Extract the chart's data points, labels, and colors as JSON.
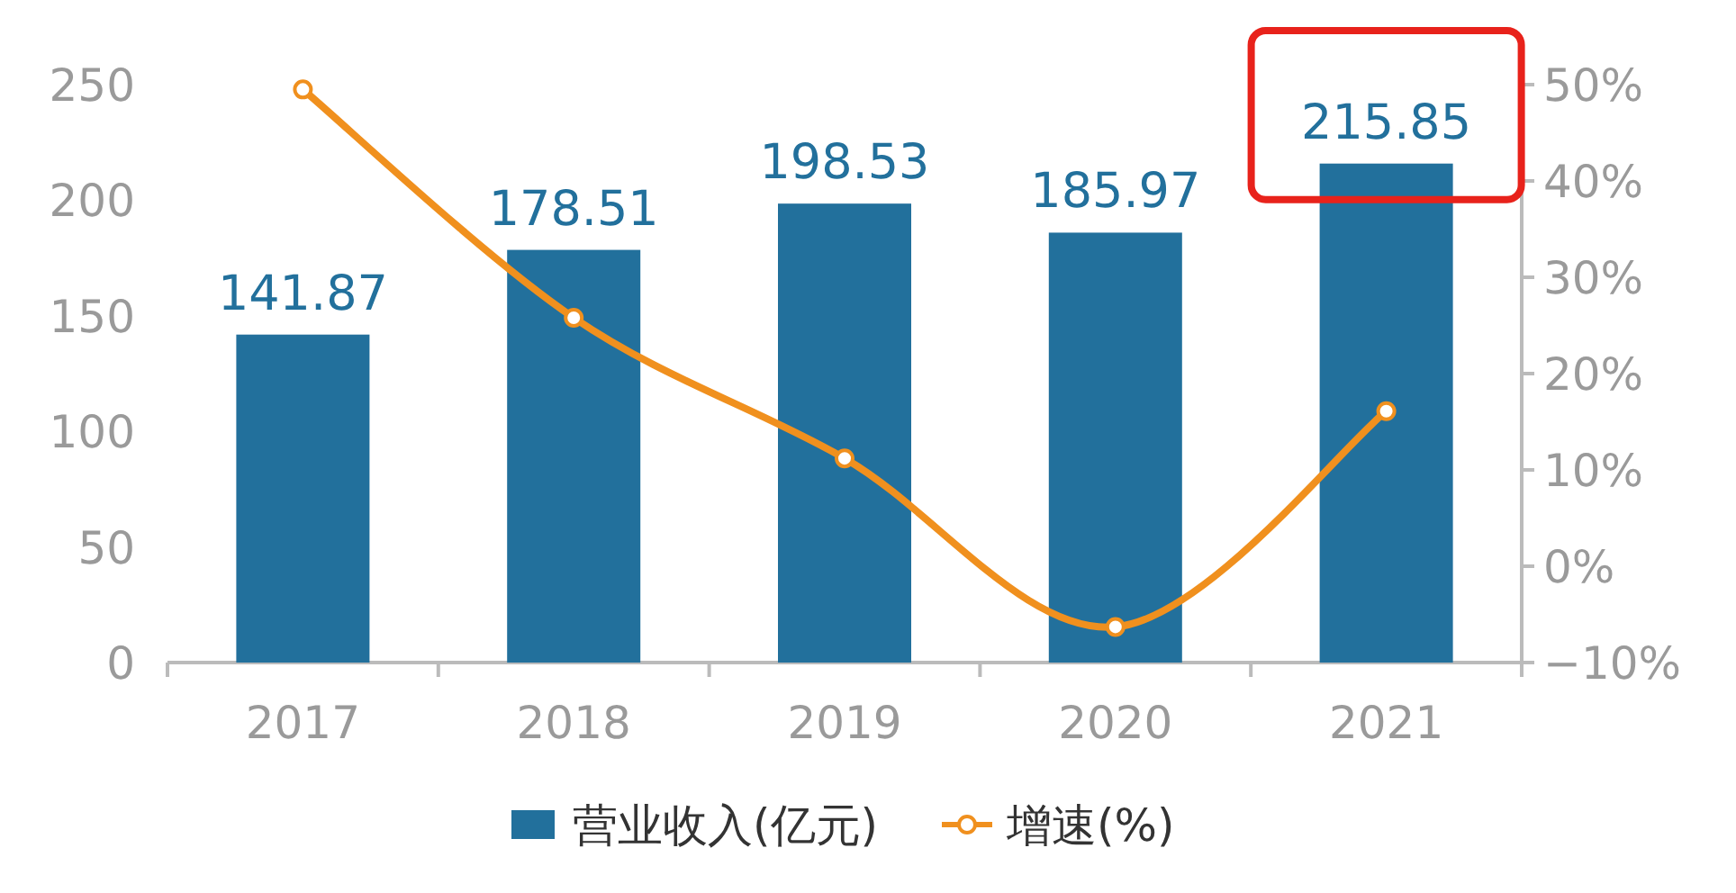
{
  "chart_data": {
    "type": "bar",
    "categories": [
      "2017",
      "2018",
      "2019",
      "2020",
      "2021"
    ],
    "series": [
      {
        "name": "营业收入(亿元)",
        "color": "#22709c",
        "values": [
          141.87,
          178.51,
          198.53,
          185.97,
          215.85
        ],
        "value_labels": [
          "141.87",
          "178.51",
          "198.53",
          "185.97",
          "215.85"
        ]
      },
      {
        "name": "增速(%)",
        "type": "line",
        "axis": "y2",
        "color": "#f0901e",
        "marker": "circle",
        "values": [
          49.5,
          25.8,
          11.2,
          -6.3,
          16.1
        ]
      }
    ],
    "ylim": [
      0,
      250
    ],
    "yticks": [
      0,
      50,
      100,
      150,
      200,
      250
    ],
    "y2lim": [
      -10,
      50
    ],
    "y2ticks": [
      {
        "value": -10,
        "label": "−10%"
      },
      {
        "value": 0,
        "label": "0%"
      },
      {
        "value": 10,
        "label": "10%"
      },
      {
        "value": 20,
        "label": "20%"
      },
      {
        "value": 30,
        "label": "30%"
      },
      {
        "value": 40,
        "label": "40%"
      },
      {
        "value": 50,
        "label": "50%"
      }
    ],
    "grid": false,
    "legend": "bottom"
  }
}
